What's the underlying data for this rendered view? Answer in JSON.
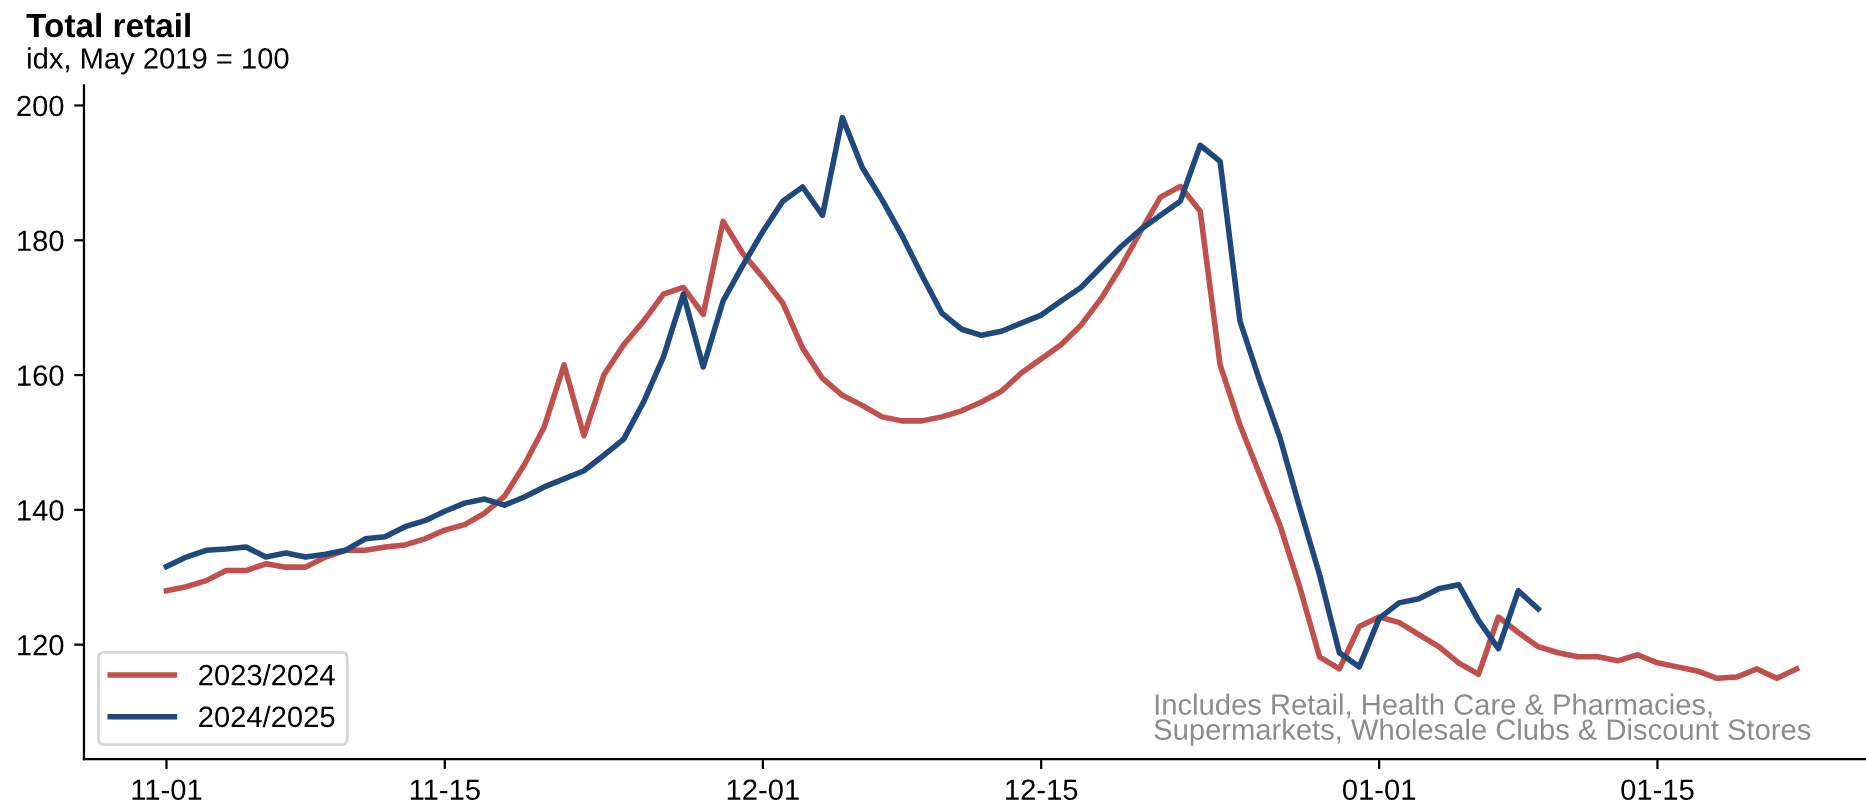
{
  "chart_data": {
    "type": "line",
    "title": "Total retail",
    "subtitle": "idx, May 2019 = 100",
    "annotations": [
      "Includes Retail, Health Care & Pharmacies,\nSupermarkets, Wholesale Clubs & Discount Stores"
    ],
    "categories": [
      "11-01",
      null,
      null,
      null,
      null,
      null,
      null,
      null,
      null,
      null,
      null,
      null,
      null,
      null,
      "11-15",
      null,
      null,
      null,
      null,
      null,
      null,
      null,
      null,
      null,
      null,
      null,
      null,
      null,
      null,
      null,
      "12-01",
      null,
      null,
      null,
      null,
      null,
      null,
      null,
      null,
      null,
      null,
      null,
      null,
      null,
      "12-15",
      null,
      null,
      null,
      null,
      null,
      null,
      null,
      null,
      null,
      null,
      null,
      null,
      null,
      null,
      null,
      null,
      "01-01",
      null,
      null,
      null,
      null,
      null,
      null,
      null,
      null,
      null,
      null,
      null,
      null,
      null,
      "01-15",
      null,
      null,
      null,
      null,
      null,
      null,
      null
    ],
    "ylim": [
      103,
      203
    ],
    "yticks": [
      120,
      140,
      160,
      180,
      200
    ],
    "grid": false,
    "legend": "bottom left",
    "line_style": "solid",
    "marker": "none",
    "series": [
      {
        "name": "2023/2024",
        "color": "#c0504d",
        "values": [
          128.0,
          128.6,
          129.5,
          131,
          131,
          132,
          131.5,
          131.5,
          133,
          134,
          134,
          134.5,
          134.8,
          135.7,
          137,
          137.8,
          139.5,
          142,
          146.7,
          152.3,
          161.5,
          151,
          160,
          164.5,
          168,
          172,
          173,
          169,
          182.8,
          178,
          174.5,
          170.7,
          164,
          159.5,
          157,
          155.5,
          153.8,
          153.2,
          153.2,
          153.8,
          154.7,
          156,
          157.6,
          160.3,
          162.4,
          164.5,
          167.4,
          171.3,
          176,
          181.3,
          186.4,
          188,
          184.3,
          161.5,
          152.6,
          145.2,
          137.8,
          128.6,
          118.2,
          116.4,
          122.7,
          124.1,
          123.3,
          121.5,
          119.7,
          117.3,
          115.6,
          124.1,
          121.8,
          119.7,
          118.8,
          118.2,
          118.2,
          117.6,
          118.5,
          117.3,
          116.7,
          116.1,
          115,
          115.2,
          116.4,
          115,
          116.4
        ]
      },
      {
        "name": "2024/2025",
        "color": "#1f497d",
        "values": [
          131.6,
          133,
          134,
          134.2,
          134.5,
          133,
          133.6,
          133,
          133.4,
          134,
          135.7,
          136,
          137.5,
          138.4,
          139.8,
          141,
          141.6,
          140.7,
          141.9,
          143.4,
          144.6,
          145.8,
          148.1,
          150.5,
          156,
          162.7,
          172,
          161.2,
          171,
          176.3,
          181.3,
          185.8,
          187.9,
          183.7,
          198.2,
          190.8,
          186,
          180.7,
          174.8,
          169.2,
          166.8,
          165.9,
          166.5,
          167.7,
          168.9,
          171,
          173,
          176,
          179,
          181.6,
          183.7,
          185.8,
          194.1,
          191.7,
          168,
          159.1,
          150.8,
          140.4,
          130.4,
          118.8,
          116.7,
          123.9,
          126.2,
          126.8,
          128.3,
          128.9,
          123.6,
          119.4,
          128,
          125.3,
          null,
          null,
          null,
          null,
          null,
          null,
          null,
          null,
          null,
          null,
          null,
          null,
          null
        ]
      }
    ]
  }
}
